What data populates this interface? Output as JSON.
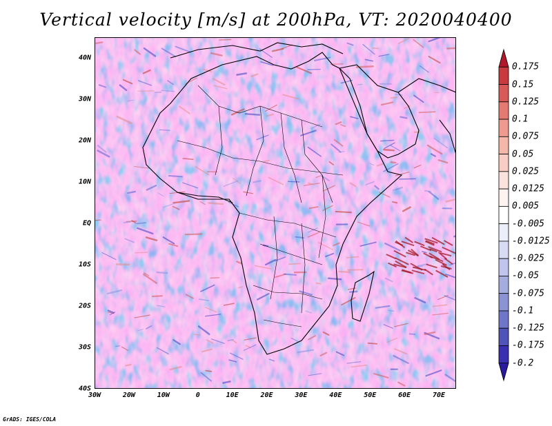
{
  "title": "Vertical velocity [m/s] at 200hPa, VT: 2020040400",
  "footer": "GrADS: IGES/COLA",
  "map": {
    "lat_labels": [
      "40N",
      "30N",
      "20N",
      "10N",
      "EQ",
      "10S",
      "20S",
      "30S",
      "40S"
    ],
    "lon_labels": [
      "30W",
      "20W",
      "10W",
      "0",
      "10E",
      "20E",
      "30E",
      "40E",
      "50E",
      "60E",
      "70E"
    ],
    "lat_range": [
      -40,
      45
    ],
    "lon_range": [
      -30,
      75
    ]
  },
  "colorbar": {
    "labels": [
      "0.175",
      "0.15",
      "0.125",
      "0.1",
      "0.075",
      "0.05",
      "0.025",
      "0.0125",
      "0.005",
      "-0.005",
      "-0.0125",
      "-0.025",
      "-0.05",
      "-0.075",
      "-0.1",
      "-0.125",
      "-0.175",
      "-0.2"
    ],
    "colors": [
      "#b2182b",
      "#c83a3e",
      "#d85a58",
      "#e57a73",
      "#ee9a8e",
      "#f4b7aa",
      "#f8cec4",
      "#fbe2dc",
      "#fef3f0",
      "#ffffff",
      "#eceef9",
      "#d7dbf3",
      "#bfc5ec",
      "#a5addf",
      "#8b93d4",
      "#6f76c7",
      "#5054b8",
      "#3a2fb0",
      "#2a1aa0"
    ]
  }
}
